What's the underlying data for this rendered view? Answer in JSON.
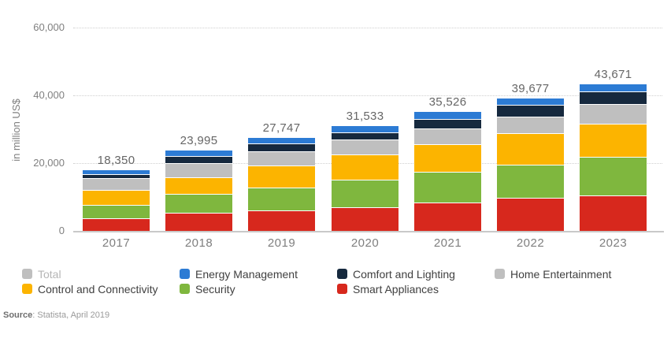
{
  "chart_data": {
    "type": "bar",
    "stacked": true,
    "title": "",
    "ylabel": "in million US$",
    "xlabel": "",
    "ylim": [
      0,
      60000
    ],
    "yticks": [
      0,
      20000,
      40000,
      60000
    ],
    "grid": "dotted-horizontal",
    "legend_position": "bottom",
    "categories": [
      "2017",
      "2018",
      "2019",
      "2020",
      "2021",
      "2022",
      "2023"
    ],
    "totals": [
      18350,
      23995,
      27747,
      31533,
      35526,
      39677,
      43671
    ],
    "series": [
      {
        "name": "Smart Appliances",
        "color": "#d7281d",
        "values": [
          4050,
          5500,
          6352,
          7293,
          8716,
          9980,
          10746
        ]
      },
      {
        "name": "Security",
        "color": "#7fb73e",
        "values": [
          3950,
          5575,
          6700,
          8120,
          8960,
          9745,
          11290
        ]
      },
      {
        "name": "Control and Connectivity",
        "color": "#fcb400",
        "values": [
          4450,
          4970,
          6465,
          7530,
          8030,
          9390,
          9715
        ]
      },
      {
        "name": "Home Entertainment",
        "color": "#bfbfbf",
        "values": [
          3400,
          4140,
          4115,
          4470,
          4720,
          4930,
          5760
        ]
      },
      {
        "name": "Comfort and Lighting",
        "color": "#16293e",
        "values": [
          1150,
          2000,
          2350,
          2120,
          2700,
          3450,
          3810
        ]
      },
      {
        "name": "Energy Management",
        "color": "#2c7bd4",
        "values": [
          1350,
          1810,
          1765,
          2000,
          2400,
          2182,
          2350
        ]
      }
    ]
  },
  "legend": {
    "items": [
      {
        "label": "Total",
        "color": "#bfbfbf",
        "label_color": "#b5b5b5"
      },
      {
        "label": "Energy Management",
        "color": "#2c7bd4",
        "label_color": "#404040"
      },
      {
        "label": "Comfort and Lighting",
        "color": "#16293e",
        "label_color": "#404040"
      },
      {
        "label": "Home Entertainment",
        "color": "#bfbfbf",
        "label_color": "#404040"
      },
      {
        "label": "Control and Connectivity",
        "color": "#fcb400",
        "label_color": "#404040"
      },
      {
        "label": "Security",
        "color": "#7fb73e",
        "label_color": "#404040"
      },
      {
        "label": "Smart Appliances",
        "color": "#d7281d",
        "label_color": "#404040"
      }
    ]
  },
  "source": {
    "label": "Source",
    "text": ": Statista, April 2019"
  }
}
